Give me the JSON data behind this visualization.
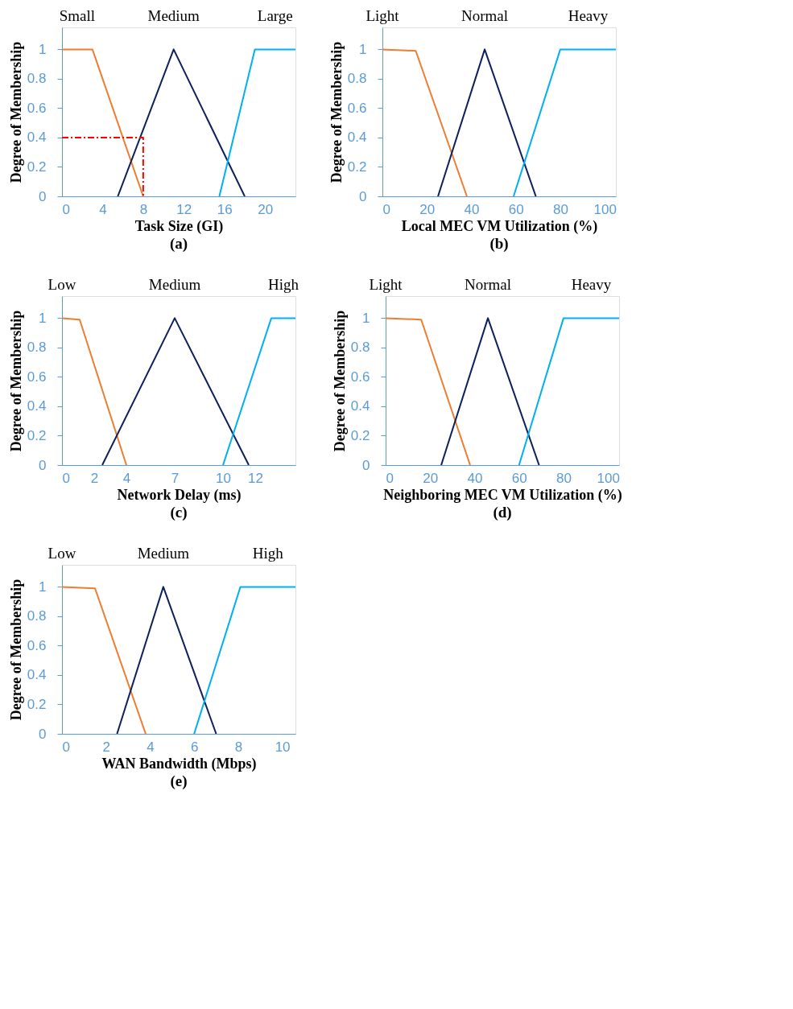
{
  "chart_data": [
    {
      "type": "line",
      "xlabel": "Task Size (GI)",
      "ylabel": "Degree of Membership",
      "annotations": [
        "(a)"
      ],
      "xlim": [
        0,
        23
      ],
      "xticks": [
        0,
        4,
        8,
        12,
        16,
        20
      ],
      "ylim": [
        0,
        1.15
      ],
      "yticks": [
        0,
        0.2,
        0.4,
        0.6,
        0.8,
        1
      ],
      "grid": false,
      "legend": false,
      "marker": "none",
      "series": [
        {
          "name": "Small",
          "color": "#ed7d31",
          "x": [
            0,
            3,
            8
          ],
          "values": [
            1,
            1,
            0
          ]
        },
        {
          "name": "Medium",
          "color": "#0d1f5c",
          "x": [
            5.5,
            11,
            18
          ],
          "values": [
            0,
            1,
            0
          ]
        },
        {
          "name": "Large",
          "color": "#00b0f0",
          "x": [
            15.5,
            19,
            23
          ],
          "values": [
            0,
            1,
            1
          ]
        },
        {
          "color": "#ff0000",
          "line_style": "dashed",
          "x": [
            0,
            8,
            8
          ],
          "values": [
            0.4,
            0.4,
            0
          ]
        }
      ]
    },
    {
      "type": "line",
      "xlabel": "Local MEC VM Utilization (%)",
      "ylabel": "Degree of Membership",
      "annotations": [
        "(b)"
      ],
      "xlim": [
        0,
        105
      ],
      "xticks": [
        0,
        20,
        40,
        60,
        80,
        100
      ],
      "ylim": [
        0,
        1.15
      ],
      "yticks": [
        0,
        0.2,
        0.4,
        0.6,
        0.8,
        1
      ],
      "grid": false,
      "legend": false,
      "marker": "none",
      "series": [
        {
          "name": "Light",
          "color": "#ed7d31",
          "x": [
            0,
            15,
            38
          ],
          "values": [
            1,
            0.99,
            0
          ]
        },
        {
          "name": "Normal",
          "color": "#0d1f5c",
          "x": [
            25,
            46,
            69
          ],
          "values": [
            0,
            1,
            0
          ]
        },
        {
          "name": "Heavy",
          "color": "#00b0f0",
          "x": [
            59,
            80,
            105
          ],
          "values": [
            0,
            1,
            1
          ]
        }
      ]
    },
    {
      "type": "line",
      "xlabel": "Network Delay (ms)",
      "ylabel": "Degree of Membership",
      "annotations": [
        "(c)"
      ],
      "xlim": [
        0,
        14.5
      ],
      "xticks": [
        0,
        2,
        4,
        7,
        10,
        12
      ],
      "ylim": [
        0,
        1.15
      ],
      "yticks": [
        0,
        0.2,
        0.4,
        0.6,
        0.8,
        1
      ],
      "grid": false,
      "legend": false,
      "marker": "none",
      "series": [
        {
          "name": "Low",
          "color": "#ed7d31",
          "x": [
            0,
            1.1,
            4
          ],
          "values": [
            1,
            0.99,
            0
          ]
        },
        {
          "name": "Medium",
          "color": "#0d1f5c",
          "x": [
            2.5,
            7,
            11.6
          ],
          "values": [
            0,
            1,
            0
          ]
        },
        {
          "name": "High",
          "color": "#00b0f0",
          "x": [
            10,
            13,
            14.5
          ],
          "values": [
            0,
            1,
            1
          ]
        }
      ]
    },
    {
      "type": "line",
      "xlabel": "Neighboring MEC VM Utilization (%)",
      "ylabel": "Degree of Membership",
      "annotations": [
        "(d)"
      ],
      "xlim": [
        0,
        105
      ],
      "xticks": [
        0,
        20,
        40,
        60,
        80,
        100
      ],
      "ylim": [
        0,
        1.15
      ],
      "yticks": [
        0,
        0.2,
        0.4,
        0.6,
        0.8,
        1
      ],
      "grid": false,
      "legend": false,
      "marker": "none",
      "series": [
        {
          "name": "Light",
          "color": "#ed7d31",
          "x": [
            0,
            16,
            38
          ],
          "values": [
            1,
            0.99,
            0
          ]
        },
        {
          "name": "Normal",
          "color": "#0d1f5c",
          "x": [
            25,
            46,
            69
          ],
          "values": [
            0,
            1,
            0
          ]
        },
        {
          "name": "Heavy",
          "color": "#00b0f0",
          "x": [
            60,
            80,
            105
          ],
          "values": [
            0,
            1,
            1
          ]
        }
      ]
    },
    {
      "type": "line",
      "xlabel": "WAN Bandwidth (Mbps)",
      "ylabel": "Degree of Membership",
      "annotations": [
        "(e)"
      ],
      "xlim": [
        0,
        10.6
      ],
      "xticks": [
        0,
        2,
        4,
        6,
        8,
        10
      ],
      "ylim": [
        0,
        1.15
      ],
      "yticks": [
        0,
        0.2,
        0.4,
        0.6,
        0.8,
        1
      ],
      "grid": false,
      "legend": false,
      "marker": "none",
      "series": [
        {
          "name": "Low",
          "color": "#ed7d31",
          "x": [
            0,
            1.5,
            3.8
          ],
          "values": [
            1,
            0.99,
            0
          ]
        },
        {
          "name": "Medium",
          "color": "#0d1f5c",
          "x": [
            2.5,
            4.6,
            7
          ],
          "values": [
            0,
            1,
            0
          ]
        },
        {
          "name": "High",
          "color": "#00b0f0",
          "x": [
            6,
            8.1,
            10.6
          ],
          "values": [
            0,
            1,
            1
          ]
        }
      ]
    }
  ]
}
